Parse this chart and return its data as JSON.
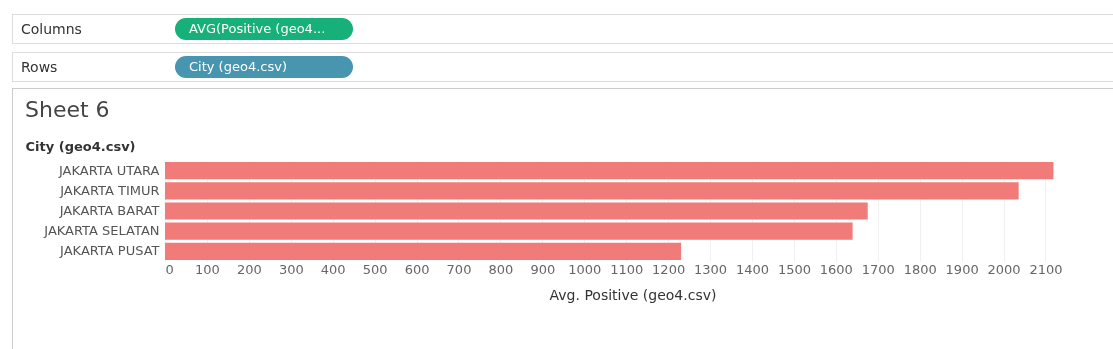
{
  "chart_data": {
    "type": "bar",
    "orientation": "horizontal",
    "title": "Sheet 6",
    "ylabel": "City (geo4.csv)",
    "xlabel": "Avg. Positive (geo4.csv)",
    "categories": [
      "JAKARTA UTARA",
      "JAKARTA TIMUR",
      "JAKARTA BARAT",
      "JAKARTA SELATAN",
      "JAKARTA PUSAT"
    ],
    "values": [
      2119,
      2036,
      1676,
      1640,
      1231
    ],
    "color": "#f07b79",
    "xlim": [
      0,
      2230
    ],
    "xticks": [
      0,
      100,
      200,
      300,
      400,
      500,
      600,
      700,
      800,
      900,
      1000,
      1100,
      1200,
      1300,
      1400,
      1500,
      1600,
      1700,
      1800,
      1900,
      2000,
      2100
    ],
    "grid": "x",
    "annotations": [
      "Columns",
      "AVG(Positive (geo4...",
      "Rows",
      "City (geo4.csv)"
    ]
  }
}
